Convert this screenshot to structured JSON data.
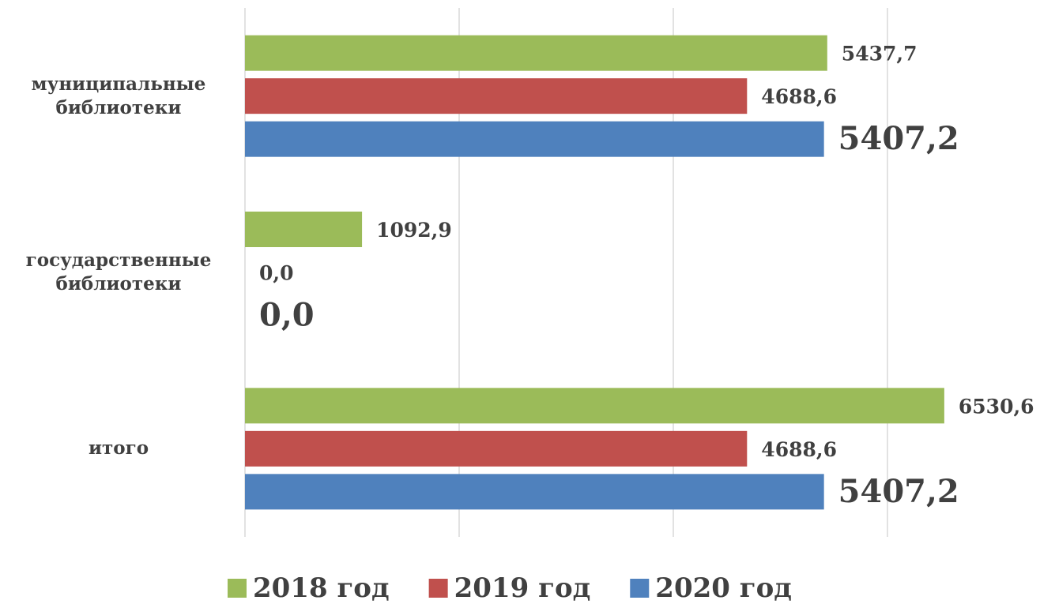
{
  "chart_data": {
    "type": "hbar",
    "categories": [
      "муниципальные библиотеки",
      "государственные библиотеки",
      "итого"
    ],
    "series": [
      {
        "name": "2018 год",
        "color": "#9bbb59",
        "values": [
          5437.7,
          1092.9,
          6530.6
        ],
        "value_labels": [
          "5437,7",
          "1092,9",
          "6530,6"
        ]
      },
      {
        "name": "2019 год",
        "color": "#c0504d",
        "values": [
          4688.6,
          0.0,
          4688.6
        ],
        "value_labels": [
          "4688,6",
          "0,0",
          "4688,6"
        ]
      },
      {
        "name": "2020 год",
        "color": "#4f81bd",
        "values": [
          5407.2,
          0.0,
          5407.2
        ],
        "value_labels": [
          "5407,2",
          "0,0",
          "5407,2"
        ]
      }
    ],
    "xlim": [
      0,
      7000
    ],
    "xticks": [
      0,
      2000,
      4000,
      6000
    ],
    "grid": true,
    "legend": "bottom"
  }
}
